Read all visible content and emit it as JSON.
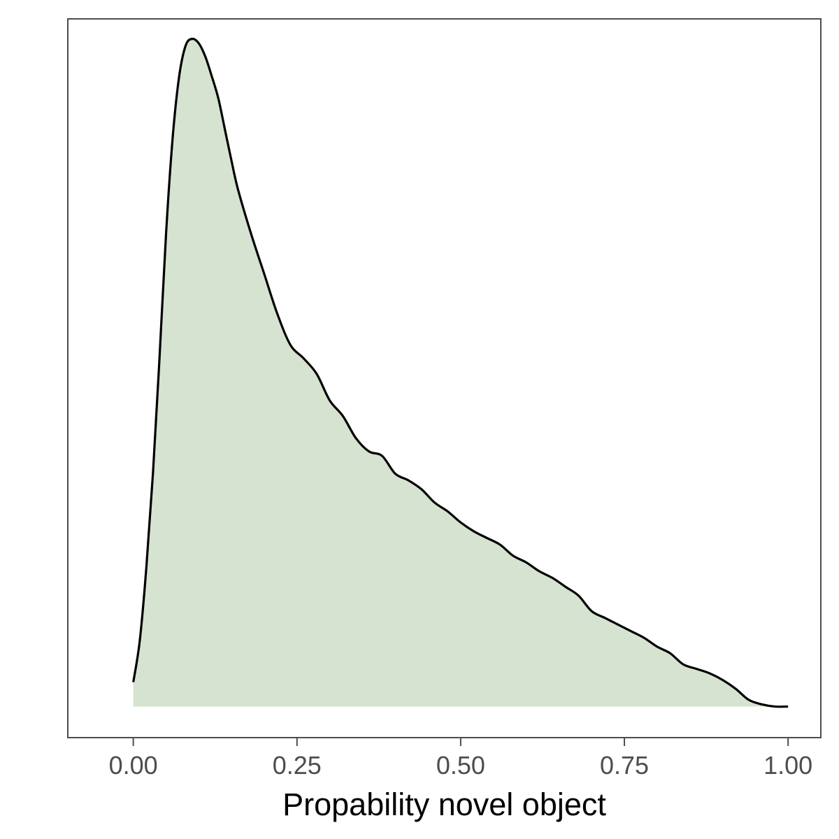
{
  "chart_data": {
    "type": "area",
    "xlabel": "Propability novel object",
    "ylabel": "",
    "xlim": [
      -0.1,
      1.05
    ],
    "ylim": [
      -0.14,
      3.1
    ],
    "x_ticks": [
      0,
      0.25,
      0.5,
      0.75,
      1
    ],
    "x_tick_labels": [
      "0.00",
      "0.25",
      "0.50",
      "0.75",
      "1.00"
    ],
    "y_ticks_shown": false,
    "grid": false,
    "legend": "none",
    "colors": {
      "fill": "#d6e3d0",
      "line": "#000000",
      "frame": "#4d4d4d",
      "tick_text": "#4d4d4d"
    },
    "series": [
      {
        "x": [
          0.0,
          0.01,
          0.02,
          0.03,
          0.04,
          0.05,
          0.06,
          0.07,
          0.08,
          0.09,
          0.1,
          0.11,
          0.12,
          0.13,
          0.14,
          0.15,
          0.16,
          0.18,
          0.2,
          0.22,
          0.24,
          0.26,
          0.28,
          0.3,
          0.32,
          0.34,
          0.36,
          0.38,
          0.4,
          0.42,
          0.44,
          0.46,
          0.48,
          0.5,
          0.52,
          0.54,
          0.56,
          0.58,
          0.6,
          0.62,
          0.64,
          0.66,
          0.68,
          0.7,
          0.72,
          0.74,
          0.76,
          0.78,
          0.8,
          0.82,
          0.84,
          0.86,
          0.88,
          0.9,
          0.92,
          0.94,
          0.96,
          0.98,
          1.0
        ],
        "y": [
          0.11,
          0.3,
          0.63,
          1.05,
          1.57,
          2.13,
          2.56,
          2.84,
          2.98,
          3.01,
          2.99,
          2.93,
          2.84,
          2.74,
          2.6,
          2.46,
          2.33,
          2.13,
          1.95,
          1.77,
          1.63,
          1.57,
          1.5,
          1.38,
          1.31,
          1.21,
          1.15,
          1.13,
          1.05,
          1.02,
          0.98,
          0.92,
          0.88,
          0.83,
          0.79,
          0.76,
          0.73,
          0.68,
          0.65,
          0.61,
          0.58,
          0.54,
          0.5,
          0.43,
          0.4,
          0.37,
          0.34,
          0.31,
          0.27,
          0.24,
          0.19,
          0.17,
          0.15,
          0.12,
          0.08,
          0.03,
          0.01,
          0.0,
          0.0
        ]
      }
    ]
  }
}
